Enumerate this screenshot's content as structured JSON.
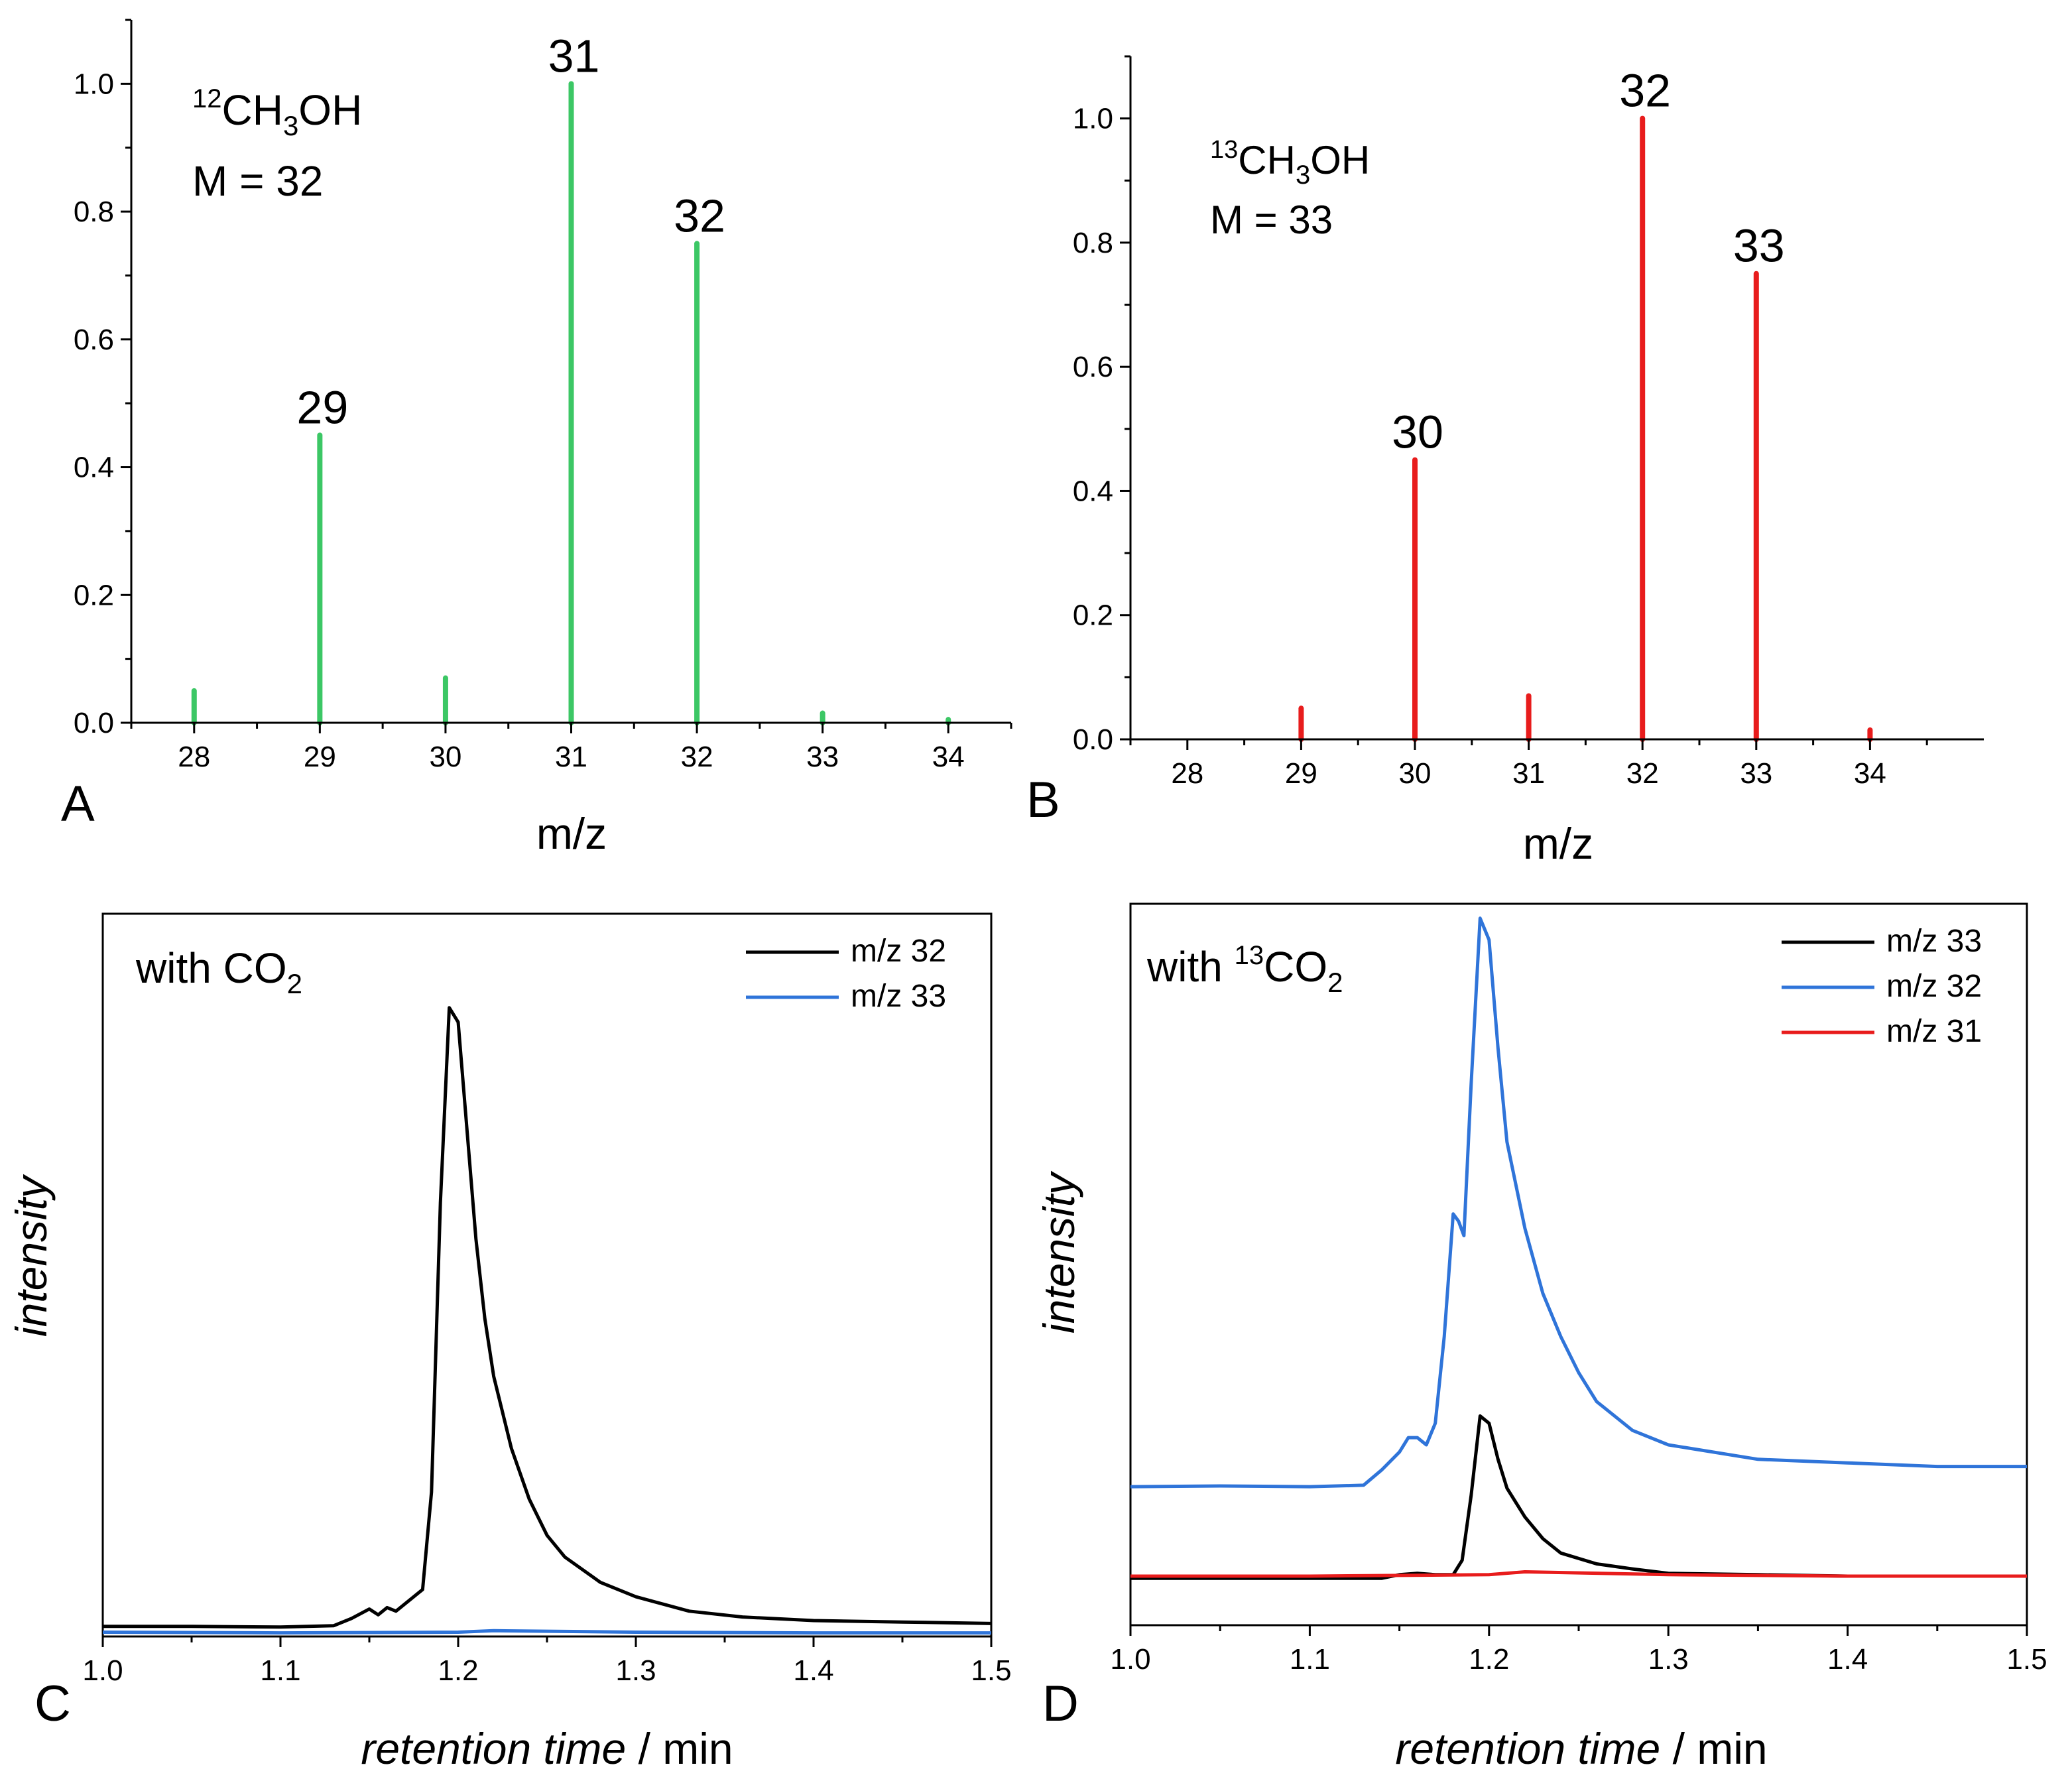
{
  "chart_data": [
    {
      "id": "A",
      "type": "bar",
      "panel_label": "A",
      "title_lines": [
        {
          "iso": "12",
          "formula": "CH",
          "sub": "3",
          "tail": "OH"
        },
        "M = 32"
      ],
      "compound_iso": "12",
      "compound_formula": "CH",
      "compound_sub": "3",
      "compound_tail": "OH",
      "mass_text": "M = 32",
      "xlabel": "m/z",
      "ylabel": "",
      "xlim": [
        27.5,
        34.5
      ],
      "ylim": [
        0,
        1.1
      ],
      "xticks": [
        "28",
        "29",
        "30",
        "31",
        "32",
        "33",
        "34"
      ],
      "yticks": [
        "0.0",
        "0.2",
        "0.4",
        "0.6",
        "0.8",
        "1.0"
      ],
      "color": "#3cc765",
      "categories": [
        28,
        29,
        30,
        31,
        32,
        33,
        34
      ],
      "values": [
        0.05,
        0.45,
        0.07,
        1.0,
        0.75,
        0.015,
        0.005
      ],
      "peak_labels": [
        "",
        "29",
        "",
        "31",
        "32",
        "",
        ""
      ]
    },
    {
      "id": "B",
      "type": "bar",
      "panel_label": "B",
      "compound_iso": "13",
      "compound_formula": "CH",
      "compound_sub": "3",
      "compound_tail": "OH",
      "mass_text": "M = 33",
      "xlabel": "m/z",
      "ylabel": "",
      "xlim": [
        27.5,
        35.0
      ],
      "ylim": [
        0,
        1.1
      ],
      "xticks": [
        "28",
        "29",
        "30",
        "31",
        "32",
        "33",
        "34"
      ],
      "yticks": [
        "0.0",
        "0.2",
        "0.4",
        "0.6",
        "0.8",
        "1.0"
      ],
      "color": "#e81c1c",
      "categories": [
        29,
        30,
        31,
        32,
        33,
        34
      ],
      "values": [
        0.05,
        0.45,
        0.07,
        1.0,
        0.75,
        0.015
      ],
      "peak_labels": [
        "",
        "30",
        "",
        "32",
        "33",
        ""
      ]
    },
    {
      "id": "C",
      "type": "line",
      "panel_label": "C",
      "annotation": {
        "text": "with CO",
        "sub": "2",
        "iso": ""
      },
      "xlabel_italic": "retention time",
      "xlabel_unit": " / min",
      "ylabel": "intensity",
      "xlim": [
        1.0,
        1.5
      ],
      "ylim": [
        0,
        100
      ],
      "xticks": [
        "1.0",
        "1.1",
        "1.2",
        "1.3",
        "1.4",
        "1.5"
      ],
      "legend": [
        "m/z 32",
        "m/z 33"
      ],
      "series": [
        {
          "name": "m/z 32",
          "color": "#000000",
          "x": [
            1.0,
            1.05,
            1.1,
            1.13,
            1.14,
            1.15,
            1.155,
            1.16,
            1.165,
            1.17,
            1.175,
            1.18,
            1.185,
            1.19,
            1.195,
            1.2,
            1.205,
            1.21,
            1.215,
            1.22,
            1.23,
            1.24,
            1.25,
            1.26,
            1.28,
            1.3,
            1.33,
            1.36,
            1.4,
            1.45,
            1.5
          ],
          "y": [
            1.4,
            1.4,
            1.3,
            1.5,
            2.5,
            3.8,
            3.0,
            4.0,
            3.5,
            4.5,
            5.5,
            6.5,
            20,
            60,
            87,
            85,
            70,
            55,
            44,
            36,
            26,
            19,
            14,
            11,
            7.5,
            5.5,
            3.5,
            2.7,
            2.2,
            2.0,
            1.8
          ]
        },
        {
          "name": "m/z 33",
          "color": "#2f74d9",
          "x": [
            1.0,
            1.1,
            1.2,
            1.22,
            1.3,
            1.4,
            1.5
          ],
          "y": [
            0.6,
            0.5,
            0.6,
            0.8,
            0.6,
            0.5,
            0.5
          ]
        }
      ]
    },
    {
      "id": "D",
      "type": "line",
      "panel_label": "D",
      "annotation": {
        "text": "CO",
        "sub": "2",
        "iso": "13",
        "prefix": "with "
      },
      "xlabel_italic": "retention time",
      "xlabel_unit": " / min",
      "ylabel": "intensity",
      "xlim": [
        1.0,
        1.5
      ],
      "ylim": [
        0,
        100
      ],
      "xticks": [
        "1.0",
        "1.1",
        "1.2",
        "1.3",
        "1.4",
        "1.5"
      ],
      "legend": [
        "m/z 33",
        "m/z 32",
        "m/z 31"
      ],
      "series": [
        {
          "name": "m/z 33",
          "color": "#000000",
          "x": [
            1.0,
            1.14,
            1.15,
            1.16,
            1.17,
            1.18,
            1.185,
            1.19,
            1.195,
            1.2,
            1.205,
            1.21,
            1.22,
            1.23,
            1.24,
            1.26,
            1.28,
            1.3,
            1.35,
            1.4,
            1.5
          ],
          "y": [
            6.5,
            6.5,
            7.0,
            7.2,
            7.0,
            7.0,
            9,
            18,
            29,
            28,
            23,
            19,
            15,
            12,
            10,
            8.5,
            7.8,
            7.2,
            7.0,
            6.8,
            6.8
          ]
        },
        {
          "name": "m/z 32",
          "color": "#2f74d9",
          "x": [
            1.0,
            1.05,
            1.1,
            1.13,
            1.14,
            1.15,
            1.155,
            1.16,
            1.165,
            1.17,
            1.175,
            1.18,
            1.183,
            1.186,
            1.19,
            1.195,
            1.2,
            1.205,
            1.21,
            1.22,
            1.23,
            1.24,
            1.25,
            1.26,
            1.28,
            1.3,
            1.35,
            1.4,
            1.45,
            1.5
          ],
          "y": [
            19.2,
            19.3,
            19.2,
            19.4,
            21.5,
            24,
            26,
            26,
            25,
            28,
            40,
            57,
            56,
            54,
            75,
            98,
            95,
            80,
            67,
            55,
            46,
            40,
            35,
            31,
            27,
            25,
            23,
            22.5,
            22,
            22
          ]
        },
        {
          "name": "m/z 31",
          "color": "#e81c1c",
          "x": [
            1.0,
            1.1,
            1.2,
            1.22,
            1.3,
            1.4,
            1.5
          ],
          "y": [
            6.8,
            6.8,
            7.0,
            7.4,
            7.0,
            6.8,
            6.8
          ]
        }
      ]
    }
  ]
}
